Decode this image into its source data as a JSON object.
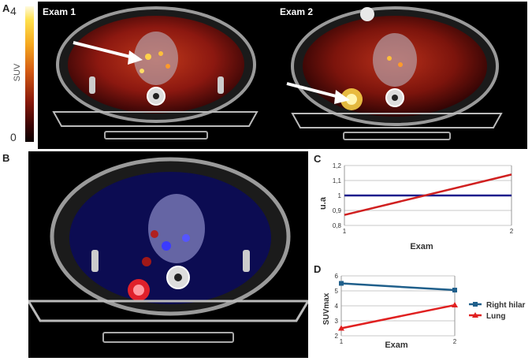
{
  "panel_a": {
    "letter": "A",
    "scale_max": "4",
    "scale_min": "0",
    "scale_label": "SUV",
    "exam1_label": "Exam 1",
    "exam2_label": "Exam 2"
  },
  "panel_b": {
    "letter": "B"
  },
  "panel_c": {
    "letter": "C",
    "ylabel": "u.a",
    "xlabel": "Exam",
    "y_ticks": [
      "0,8",
      "0,9",
      "1",
      "1,1",
      "1,2"
    ],
    "x_ticks": [
      "1",
      "2"
    ]
  },
  "panel_d": {
    "letter": "D",
    "ylabel": "SUVmax",
    "xlabel": "Exam",
    "y_ticks": [
      "2",
      "3",
      "4",
      "5",
      "6"
    ],
    "x_ticks": [
      "1",
      "2"
    ]
  },
  "chart_data": [
    {
      "type": "line",
      "panel": "C",
      "x": [
        1,
        2
      ],
      "series": [
        {
          "values": [
            1.0,
            1.0
          ],
          "color": "#1a1a8c"
        },
        {
          "values": [
            0.87,
            1.14
          ],
          "color": "#d02020"
        }
      ],
      "xlabel": "Exam",
      "ylabel": "u.a",
      "ylim": [
        0.8,
        1.2
      ],
      "grid": true
    },
    {
      "type": "line",
      "panel": "D",
      "x": [
        1,
        2
      ],
      "series": [
        {
          "name": "Right hilar",
          "values": [
            5.5,
            5.05
          ],
          "color": "#1f5f8b",
          "marker": "square"
        },
        {
          "name": "Lung",
          "values": [
            2.5,
            4.05
          ],
          "color": "#e02020",
          "marker": "triangle"
        }
      ],
      "xlabel": "Exam",
      "ylabel": "SUVmax",
      "ylim": [
        2,
        6
      ],
      "grid": true,
      "legend": "right"
    }
  ]
}
